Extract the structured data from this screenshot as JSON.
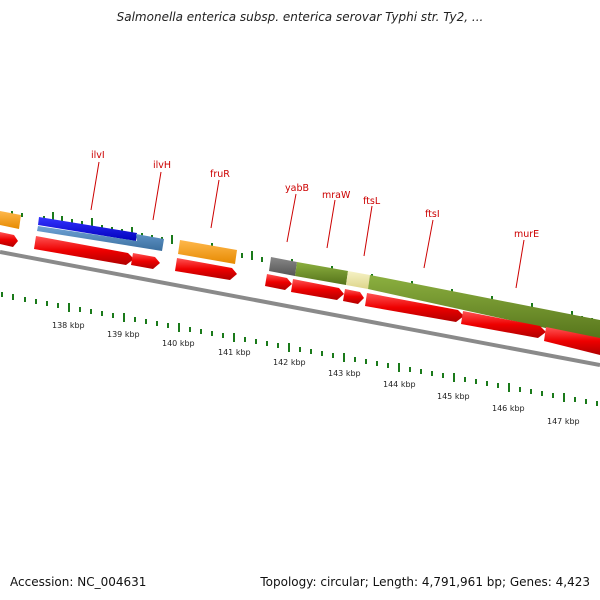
{
  "title": "Salmonella enterica subsp. enterica serovar Typhi str. Ty2, ...",
  "footer": {
    "accession": "Accession: NC_004631",
    "summary": "Topology: circular; Length: 4,791,961 bp; Genes: 4,423"
  },
  "map": {
    "ticks": [
      "138 kbp",
      "139 kbp",
      "140 kbp",
      "141 kbp",
      "142 kbp",
      "143 kbp",
      "144 kbp",
      "145 kbp",
      "146 kbp",
      "147 kbp"
    ],
    "genes": [
      "ilvI",
      "ilvH",
      "fruR",
      "yabB",
      "mraW",
      "ftsL",
      "ftsI",
      "murE"
    ],
    "colors": {
      "cds": "#ff0000",
      "orange": "#ff9900",
      "blue": "#0000ee",
      "steelblue": "#4682b4",
      "olive": "#6b8e23",
      "pale": "#eee8aa",
      "gray": "#666666",
      "backbone": "#888888",
      "label": "#cc0000"
    }
  }
}
